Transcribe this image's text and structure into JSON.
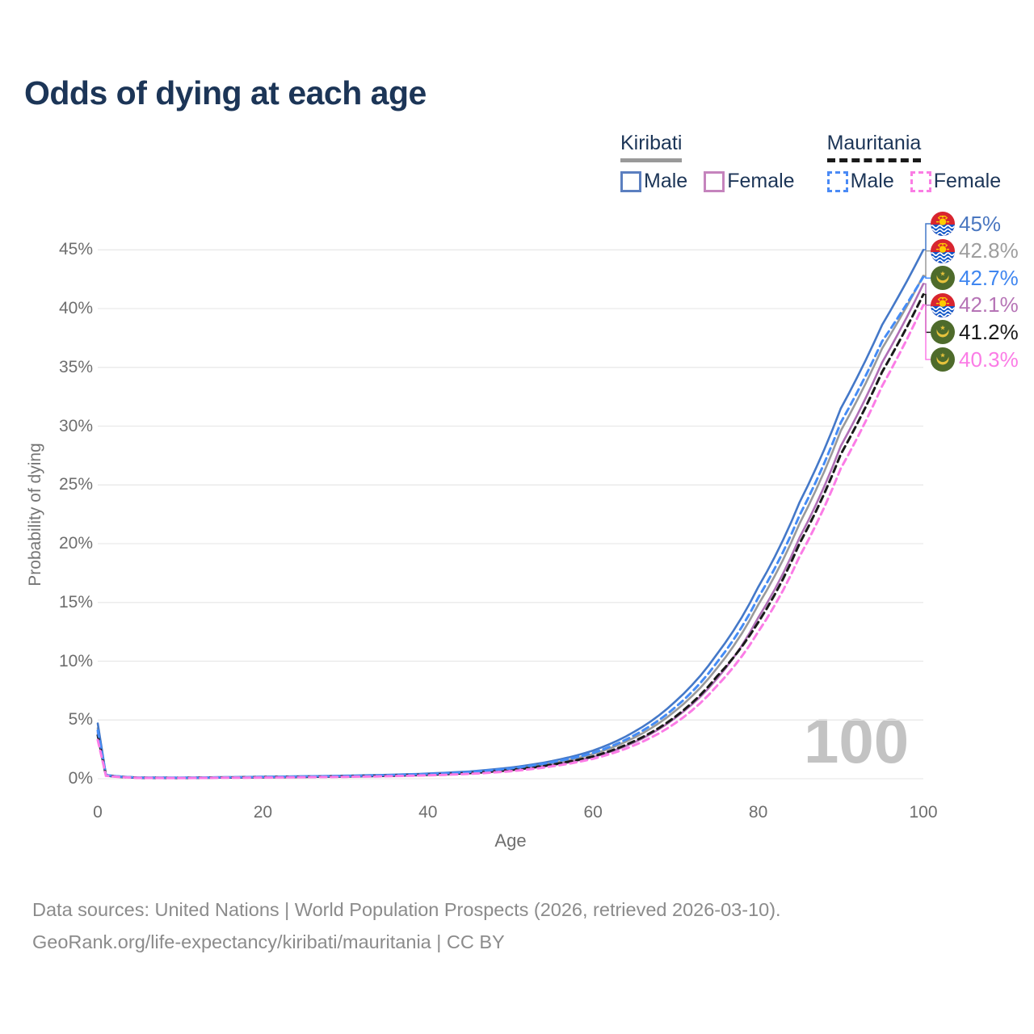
{
  "title": "Odds of dying at each age",
  "legend": {
    "groups": [
      {
        "name": "Kiribati",
        "underline_style": "solid",
        "underline_color": "#999999",
        "items": [
          {
            "label": "Male",
            "color": "#5b7fc0",
            "dashed": false
          },
          {
            "label": "Female",
            "color": "#c584bd",
            "dashed": false
          }
        ]
      },
      {
        "name": "Mauritania",
        "underline_style": "dashed",
        "underline_color": "#1a1a1a",
        "items": [
          {
            "label": "Male",
            "color": "#4a8af5",
            "dashed": true
          },
          {
            "label": "Female",
            "color": "#fa7de4",
            "dashed": true
          }
        ]
      }
    ]
  },
  "watermark": "100",
  "footer": {
    "line1": "Data sources: United Nations | World Population Prospects (2026, retrieved 2026-03-10).",
    "line2": "GeoRank.org/life-expectancy/kiribati/mauritania | CC BY"
  },
  "chart_data": {
    "type": "line",
    "title": "Odds of dying at each age",
    "xlabel": "Age",
    "ylabel": "Probability of dying",
    "x_ticks": [
      0,
      20,
      40,
      60,
      80,
      100
    ],
    "y_ticks": [
      "0%",
      "5%",
      "10%",
      "15%",
      "20%",
      "25%",
      "30%",
      "35%",
      "40%",
      "45%"
    ],
    "xlim": [
      0,
      100
    ],
    "ylim_percent": [
      0,
      47
    ],
    "grid": "horizontal",
    "legend_position": "top-right",
    "ages": [
      0,
      1,
      5,
      10,
      15,
      20,
      25,
      30,
      35,
      40,
      45,
      50,
      55,
      60,
      65,
      70,
      75,
      80,
      85,
      90,
      95,
      100
    ],
    "series": [
      {
        "name": "Kiribati Male",
        "country": "kiribati",
        "sex": "male",
        "color": "#4478c8",
        "dashed": false,
        "end_label": "45%",
        "end_label_color": "#4a77c0",
        "end_value": 45.0,
        "values_percent": [
          4.7,
          0.32,
          0.1,
          0.09,
          0.13,
          0.17,
          0.21,
          0.26,
          0.33,
          0.44,
          0.62,
          0.95,
          1.5,
          2.4,
          4.0,
          6.6,
          10.6,
          16.3,
          23.5,
          31.5,
          38.6,
          45.0
        ]
      },
      {
        "name": "Kiribati Both sexes",
        "country": "kiribati",
        "sex": "all",
        "color": "#9a9a9a",
        "dashed": false,
        "end_label": "42.8%",
        "end_label_color": "#9e9e9e",
        "end_value": 42.8,
        "values_percent": [
          4.3,
          0.3,
          0.09,
          0.08,
          0.11,
          0.14,
          0.18,
          0.22,
          0.28,
          0.38,
          0.54,
          0.82,
          1.3,
          2.1,
          3.5,
          5.8,
          9.4,
          14.8,
          21.7,
          29.6,
          36.6,
          42.8
        ]
      },
      {
        "name": "Mauritania Male",
        "country": "mauritania",
        "sex": "male",
        "color": "#458cf5",
        "dashed": true,
        "end_label": "42.7%",
        "end_label_color": "#3f86f0",
        "end_value": 42.7,
        "values_percent": [
          4.1,
          0.3,
          0.09,
          0.08,
          0.11,
          0.15,
          0.19,
          0.23,
          0.3,
          0.4,
          0.57,
          0.88,
          1.4,
          2.2,
          3.7,
          6.1,
          9.9,
          15.4,
          22.4,
          30.3,
          37.2,
          42.7
        ]
      },
      {
        "name": "Kiribati Female",
        "country": "kiribati",
        "sex": "female",
        "color": "#b06fb6",
        "dashed": false,
        "end_label": "42.1%",
        "end_label_color": "#b674b6",
        "end_value": 42.1,
        "values_percent": [
          3.9,
          0.28,
          0.08,
          0.07,
          0.09,
          0.12,
          0.15,
          0.19,
          0.24,
          0.33,
          0.47,
          0.72,
          1.15,
          1.85,
          3.1,
          5.2,
          8.5,
          13.7,
          20.5,
          28.3,
          35.4,
          42.1
        ]
      },
      {
        "name": "Mauritania Both sexes",
        "country": "mauritania",
        "sex": "all",
        "color": "#1a1a1a",
        "dashed": true,
        "end_label": "41.2%",
        "end_label_color": "#1a1a1a",
        "end_value": 41.2,
        "values_percent": [
          3.7,
          0.27,
          0.08,
          0.07,
          0.1,
          0.13,
          0.16,
          0.2,
          0.25,
          0.34,
          0.48,
          0.74,
          1.2,
          1.9,
          3.2,
          5.3,
          8.7,
          13.3,
          20.0,
          27.6,
          34.6,
          41.2
        ]
      },
      {
        "name": "Mauritania Female",
        "country": "mauritania",
        "sex": "female",
        "color": "#fb7ce6",
        "dashed": true,
        "end_label": "40.3%",
        "end_label_color": "#fb7ce6",
        "end_value": 40.3,
        "values_percent": [
          3.3,
          0.25,
          0.07,
          0.06,
          0.08,
          0.1,
          0.13,
          0.16,
          0.21,
          0.29,
          0.41,
          0.64,
          1.05,
          1.7,
          2.85,
          4.75,
          7.9,
          12.5,
          18.9,
          26.4,
          33.4,
          40.3
        ]
      }
    ],
    "flag_colors": {
      "kiribati": {
        "red": "#d8252f",
        "yellow": "#ffcc00",
        "blue": "#1157c8",
        "white": "#ffffff"
      },
      "mauritania": {
        "green": "#4e6b2b",
        "yellow": "#e6c23c"
      }
    }
  }
}
